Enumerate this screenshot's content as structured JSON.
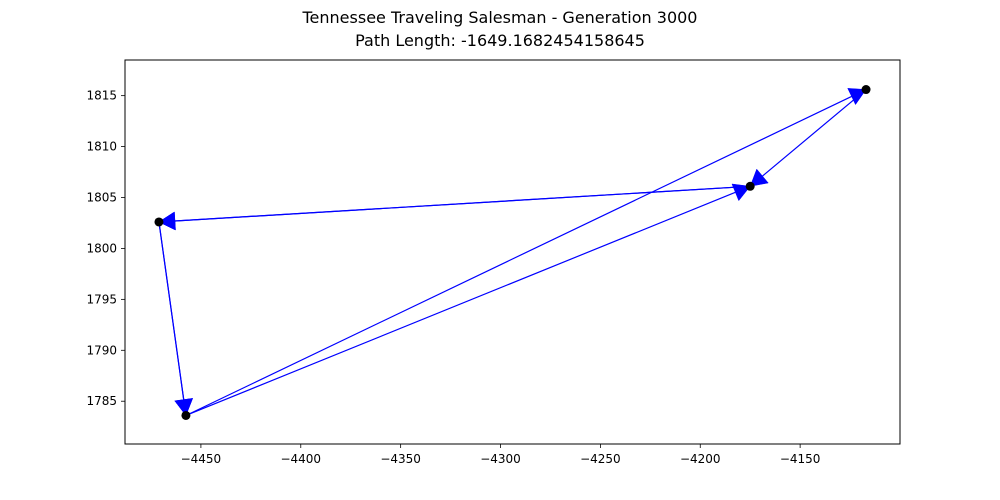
{
  "chart_data": {
    "type": "line",
    "title_line1": "Tennessee Traveling Salesman - Generation 3000",
    "title_line2": "Path Length: -1649.1682454158645",
    "xlabel": "",
    "ylabel": "",
    "xlim": [
      -4488,
      -4100
    ],
    "ylim": [
      1780.8,
      1818.5
    ],
    "xticks": [
      -4450,
      -4400,
      -4350,
      -4300,
      -4250,
      -4200,
      -4150
    ],
    "xtick_labels": [
      "−4450",
      "−4400",
      "−4350",
      "−4300",
      "−4250",
      "−4200",
      "−4150"
    ],
    "yticks": [
      1785,
      1790,
      1795,
      1800,
      1805,
      1810,
      1815
    ],
    "ytick_labels": [
      "1785",
      "1790",
      "1795",
      "1800",
      "1805",
      "1810",
      "1815"
    ],
    "grid": false,
    "cities": [
      {
        "x": -4471,
        "y": 1802.6
      },
      {
        "x": -4457.5,
        "y": 1783.6
      },
      {
        "x": -4175,
        "y": 1806.1
      },
      {
        "x": -4117,
        "y": 1815.6
      }
    ],
    "path": [
      {
        "from": 0,
        "to": 1
      },
      {
        "from": 1,
        "to": 3
      },
      {
        "from": 3,
        "to": 2
      },
      {
        "from": 2,
        "to": 0
      },
      {
        "from": 0,
        "to": 1
      },
      {
        "from": 1,
        "to": 2
      },
      {
        "from": 2,
        "to": 0
      }
    ],
    "path_color": "#0000ff",
    "city_color": "#000000"
  }
}
